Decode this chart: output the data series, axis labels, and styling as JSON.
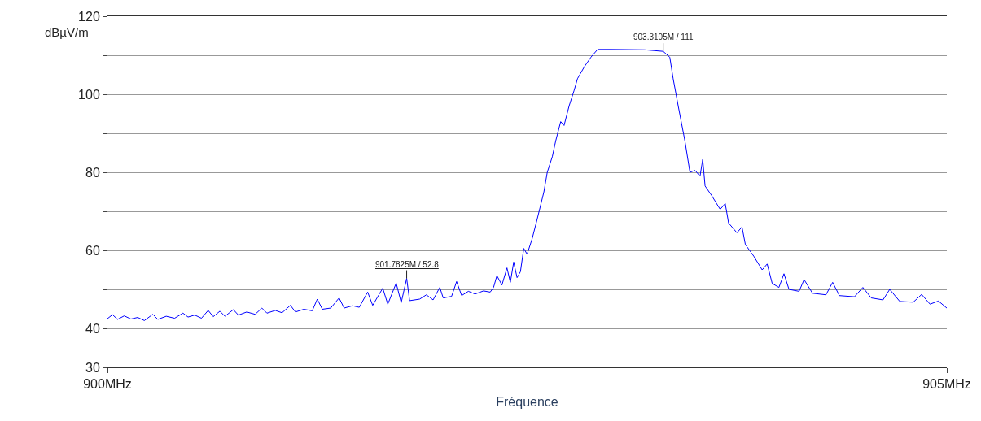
{
  "chart_data": {
    "type": "line",
    "xlabel": "Fréquence",
    "ylabel": "dBµV/m",
    "x": [
      900.0,
      900.03,
      900.06,
      900.1,
      900.14,
      900.18,
      900.22,
      900.27,
      900.3,
      900.35,
      900.4,
      900.45,
      900.48,
      900.52,
      900.56,
      900.6,
      900.63,
      900.67,
      900.7,
      900.75,
      900.78,
      900.83,
      900.88,
      900.92,
      900.95,
      901.0,
      901.04,
      901.09,
      901.12,
      901.17,
      901.22,
      901.25,
      901.28,
      901.33,
      901.38,
      901.41,
      901.46,
      901.5,
      901.55,
      901.58,
      901.64,
      901.67,
      901.72,
      901.75,
      901.7825,
      901.8,
      901.86,
      901.9,
      901.94,
      901.98,
      902.0,
      902.05,
      902.08,
      902.11,
      902.15,
      902.19,
      902.24,
      902.28,
      902.3,
      902.32,
      902.35,
      902.38,
      902.4,
      902.42,
      902.44,
      902.46,
      902.48,
      902.5,
      902.53,
      902.56,
      902.6,
      902.62,
      902.65,
      902.67,
      902.7,
      902.72,
      902.75,
      902.78,
      902.8,
      902.84,
      902.88,
      902.92,
      903.0,
      903.2,
      903.3105,
      903.35,
      903.37,
      903.4,
      903.44,
      903.47,
      903.5,
      903.53,
      903.546,
      903.56,
      903.6,
      903.65,
      903.68,
      903.7,
      903.75,
      903.78,
      903.8,
      903.85,
      903.9,
      903.93,
      903.96,
      904.0,
      904.03,
      904.06,
      904.12,
      904.15,
      904.2,
      904.28,
      904.32,
      904.36,
      904.45,
      904.5,
      904.55,
      904.62,
      904.66,
      904.72,
      904.8,
      904.85,
      904.9,
      904.95,
      905.0
    ],
    "series": [
      {
        "color": "#0000ff",
        "values": [
          42.5,
          43.5,
          42.3,
          43.2,
          42.4,
          42.8,
          42.0,
          43.6,
          42.3,
          43.1,
          42.6,
          43.9,
          42.9,
          43.4,
          42.6,
          44.6,
          43.0,
          44.4,
          43.1,
          44.8,
          43.4,
          44.2,
          43.6,
          45.2,
          43.9,
          44.6,
          44.0,
          45.9,
          44.2,
          44.9,
          44.5,
          47.5,
          44.9,
          45.2,
          47.8,
          45.2,
          45.8,
          45.4,
          49.3,
          45.9,
          50.3,
          46.2,
          51.6,
          46.6,
          52.8,
          47.1,
          47.5,
          48.6,
          47.3,
          50.5,
          47.8,
          48.2,
          52.0,
          48.4,
          49.5,
          48.8,
          49.6,
          49.3,
          50.5,
          53.5,
          51.1,
          55.5,
          51.8,
          57.0,
          53.0,
          54.5,
          60.5,
          59.0,
          63.0,
          68.0,
          75.0,
          80.0,
          84.0,
          88.0,
          93.0,
          92.0,
          97.0,
          101.0,
          104.0,
          107.0,
          109.5,
          111.5,
          111.5,
          111.4,
          111,
          109.5,
          104.0,
          97.0,
          88.0,
          80.0,
          80.5,
          79.0,
          83.3,
          76.5,
          74.0,
          70.5,
          72.0,
          67.0,
          64.5,
          66.0,
          61.5,
          58.5,
          55.0,
          56.5,
          51.5,
          50.5,
          54.0,
          50.0,
          49.5,
          52.5,
          49.0,
          48.6,
          51.8,
          48.4,
          48.1,
          50.5,
          47.8,
          47.3,
          50.0,
          46.9,
          46.7,
          48.7,
          46.2,
          47.0,
          45.2
        ]
      }
    ],
    "xlim": [
      900,
      905
    ],
    "xticks": [
      {
        "value": 900,
        "label": "900MHz"
      },
      {
        "value": 905,
        "label": "905MHz"
      }
    ],
    "ylim": [
      30,
      120
    ],
    "yticks": [
      30,
      40,
      {
        "value": 50,
        "label": null
      },
      60,
      {
        "value": 70,
        "label": null
      },
      80,
      {
        "value": 90,
        "label": null
      },
      100,
      {
        "value": 110,
        "label": null
      },
      120
    ],
    "grid": "y",
    "annotations": [
      {
        "text": "901.7825M / 52.8",
        "x": 901.7825,
        "y": 52.8
      },
      {
        "text": "903.3105M / 111",
        "x": 903.3105,
        "y": 111
      }
    ]
  }
}
